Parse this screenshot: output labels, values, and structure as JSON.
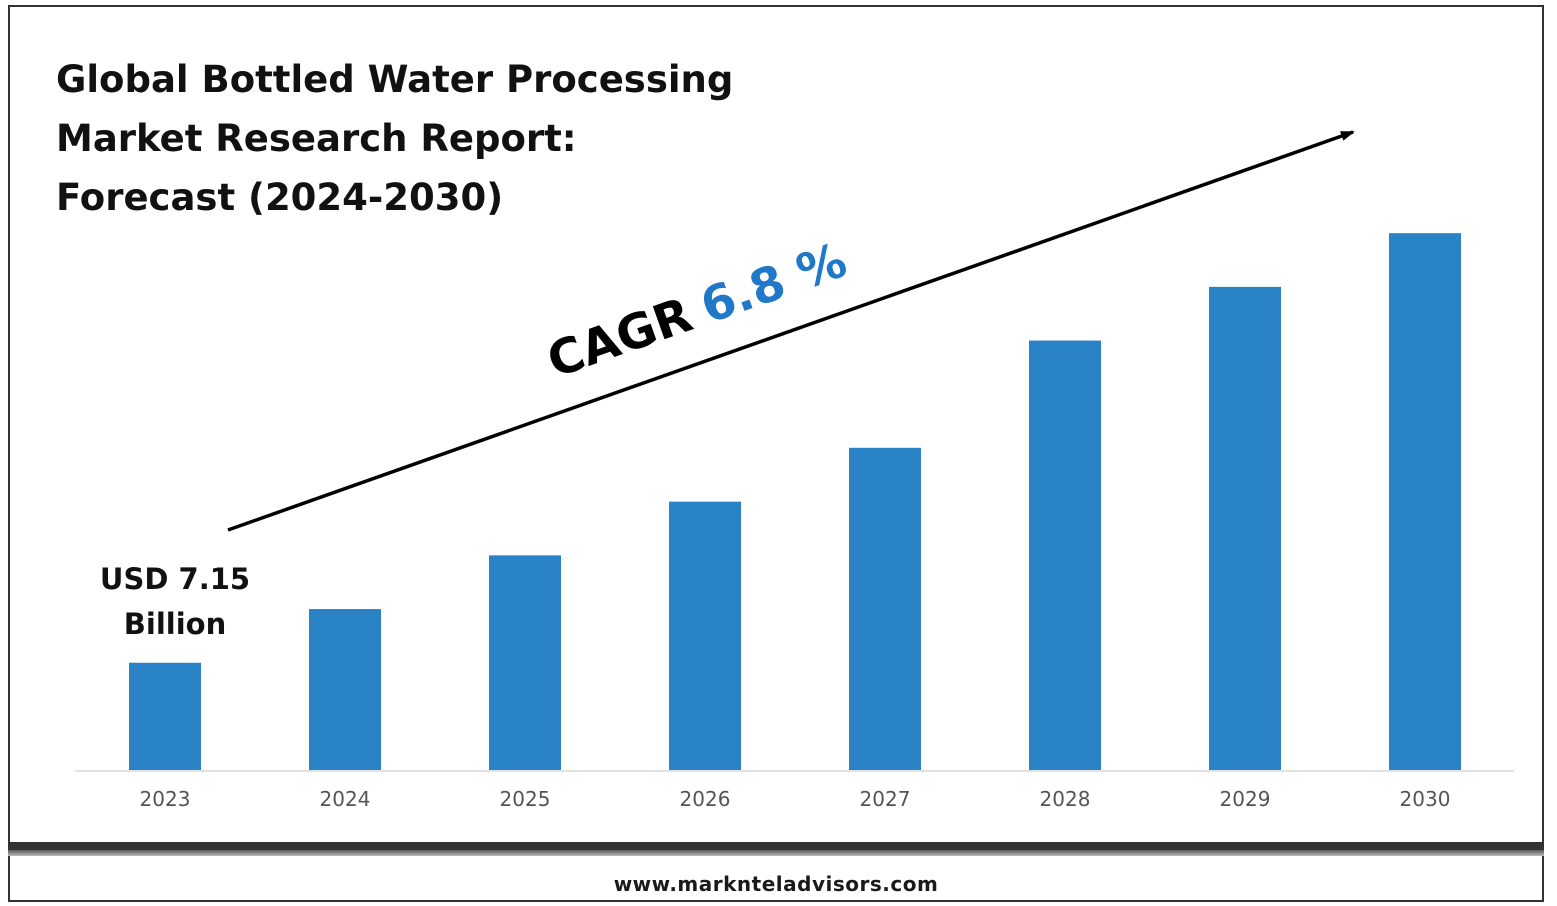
{
  "title_lines": [
    "Global Bottled Water Processing",
    "Market Research Report:",
    "Forecast (2024-2030)"
  ],
  "cagr": {
    "label": "CAGR",
    "value": "6.8 %",
    "value_color": "#1f78c8"
  },
  "annotation": {
    "line1": "USD 7.15",
    "line2": "Billion"
  },
  "footer": "www.marknteladvisors.com",
  "chart_data": {
    "type": "bar",
    "categories": [
      "2023",
      "2024",
      "2025",
      "2026",
      "2027",
      "2028",
      "2029",
      "2030"
    ],
    "values": [
      7.15,
      10.73,
      14.31,
      17.89,
      21.48,
      28.63,
      32.21,
      35.79
    ],
    "bar_color": "#2a83c6",
    "ylim": [
      0,
      40
    ],
    "grid": false,
    "legend": "none"
  }
}
